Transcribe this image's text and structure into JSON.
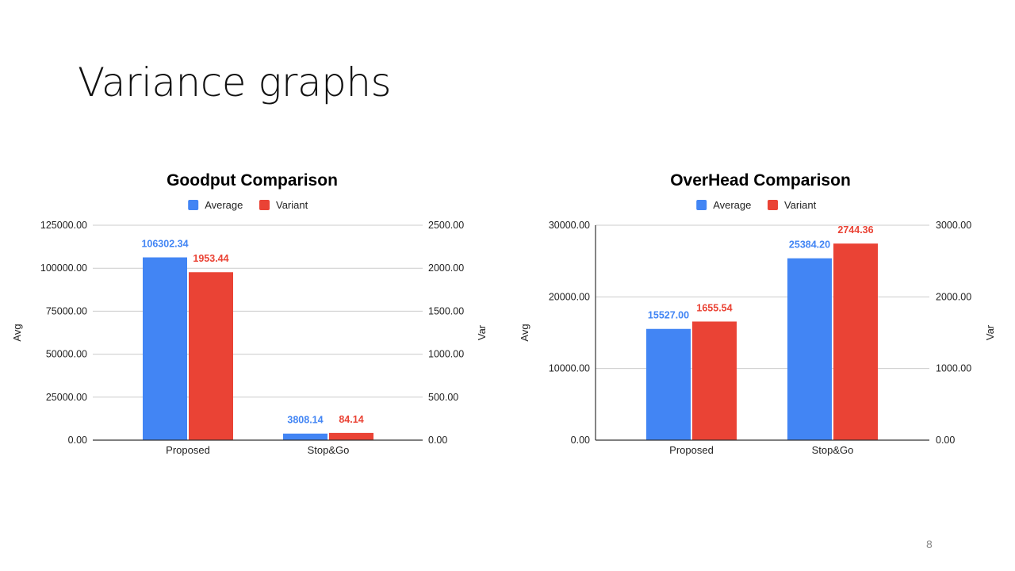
{
  "slide": {
    "title": "Variance graphs",
    "page_number": "8"
  },
  "colors": {
    "average": "#4285f4",
    "variant": "#ea4335",
    "grid": "#cccccc",
    "axis": "#333333"
  },
  "chart_data": [
    {
      "type": "bar",
      "title": "Goodput Comparison",
      "categories": [
        "Proposed",
        "Stop&Go"
      ],
      "series": [
        {
          "name": "Average",
          "axis": "left",
          "values": [
            106302.34,
            3808.14
          ],
          "labels": [
            "106302.34",
            "3808.14"
          ]
        },
        {
          "name": "Variant",
          "axis": "right",
          "values": [
            1953.44,
            84.14
          ],
          "labels": [
            "1953.44",
            "84.14"
          ]
        }
      ],
      "ylabel_left": "Avg",
      "ylabel_right": "Var",
      "ylim_left": [
        0,
        125000
      ],
      "ylim_right": [
        0,
        2500
      ],
      "left_ticks": [
        "0.00",
        "25000.00",
        "50000.00",
        "75000.00",
        "100000.00",
        "125000.00"
      ],
      "right_ticks": [
        "0.00",
        "500.00",
        "1000.00",
        "1500.00",
        "2000.00",
        "2500.00"
      ],
      "grid": true,
      "legend_position": "top"
    },
    {
      "type": "bar",
      "title": "OverHead Comparison",
      "categories": [
        "Proposed",
        "Stop&Go"
      ],
      "series": [
        {
          "name": "Average",
          "axis": "left",
          "values": [
            15527.0,
            25384.2
          ],
          "labels": [
            "15527.00",
            "25384.20"
          ]
        },
        {
          "name": "Variant",
          "axis": "right",
          "values": [
            1655.54,
            2744.36
          ],
          "labels": [
            "1655.54",
            "2744.36"
          ]
        }
      ],
      "ylabel_left": "Avg",
      "ylabel_right": "Var",
      "ylim_left": [
        0,
        30000
      ],
      "ylim_right": [
        0,
        3000
      ],
      "left_ticks": [
        "0.00",
        "10000.00",
        "20000.00",
        "30000.00"
      ],
      "right_ticks": [
        "0.00",
        "1000.00",
        "2000.00",
        "3000.00"
      ],
      "grid": true,
      "legend_position": "top"
    }
  ]
}
